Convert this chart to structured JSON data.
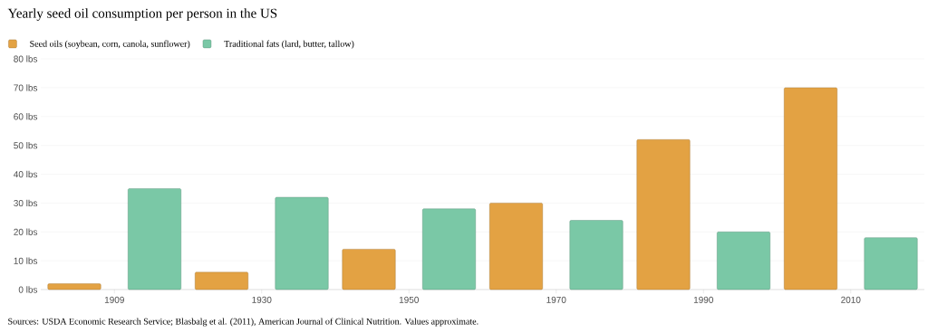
{
  "chart_data": {
    "type": "bar",
    "title": "Yearly seed oil consumption per person in the US",
    "categories": [
      "1909",
      "1930",
      "1950",
      "1970",
      "1990",
      "2010"
    ],
    "series": [
      {
        "name": "Seed oils (soybean, corn, canola, sunflower)",
        "color": "#e3a243",
        "values": [
          2,
          6,
          14,
          30,
          52,
          70
        ]
      },
      {
        "name": "Traditional fats (lard, butter, tallow)",
        "color": "#7ac8a6",
        "values": [
          35,
          32,
          28,
          24,
          20,
          18
        ]
      }
    ],
    "ylim": [
      0,
      80
    ],
    "yticks": [
      {
        "value": 0,
        "label": "0 lbs"
      },
      {
        "value": 10,
        "label": "10 lbs"
      },
      {
        "value": 20,
        "label": "20 lbs"
      },
      {
        "value": 30,
        "label": "30 lbs"
      },
      {
        "value": 40,
        "label": "40 lbs"
      },
      {
        "value": 50,
        "label": "50 lbs"
      },
      {
        "value": 60,
        "label": "60 lbs"
      },
      {
        "value": 70,
        "label": "70 lbs"
      },
      {
        "value": 80,
        "label": "80 lbs"
      }
    ],
    "grid": "y",
    "legend": "top left",
    "annotations": [
      "Sources: USDA Economic Research Service; Blasbalg et al. (2011), American Journal of Clinical Nutrition. Values approximate."
    ]
  }
}
